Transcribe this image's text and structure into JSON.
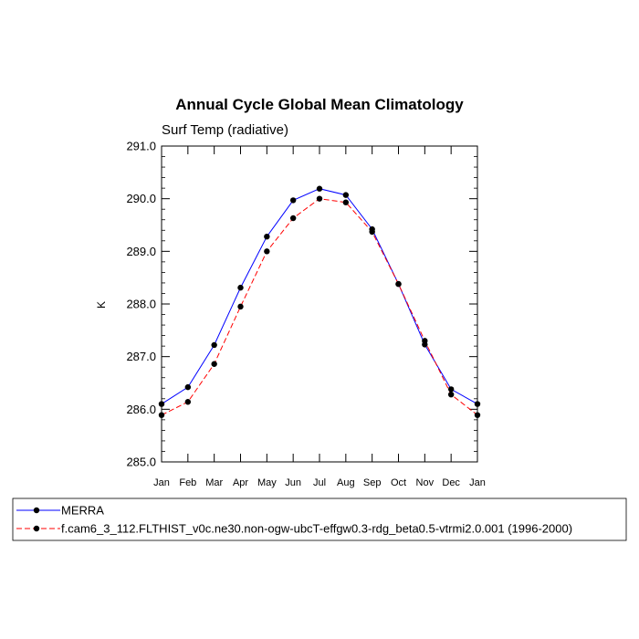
{
  "chart_data": {
    "type": "line",
    "title": "Annual Cycle Global Mean Climatology",
    "subtitle": "Surf Temp (radiative)",
    "ylabel": "K",
    "xlabel": "",
    "ylim": [
      285.0,
      291.0
    ],
    "yticks": [
      "285.0",
      "286.0",
      "287.0",
      "288.0",
      "289.0",
      "290.0",
      "291.0"
    ],
    "categories": [
      "Jan",
      "Feb",
      "Mar",
      "Apr",
      "May",
      "Jun",
      "Jul",
      "Aug",
      "Sep",
      "Oct",
      "Nov",
      "Dec",
      "Jan"
    ],
    "series": [
      {
        "name": "MERRA",
        "color": "#0000ff",
        "dash": "solid",
        "values": [
          286.1,
          286.42,
          287.22,
          288.31,
          289.28,
          289.97,
          290.19,
          290.07,
          289.42,
          288.38,
          287.23,
          286.38,
          286.1
        ]
      },
      {
        "name": "f.cam6_3_112.FLTHIST_v0c.ne30.non-ogw-ubcT-effgw0.3-rdg_beta0.5-vtrmi2.0.001 (1996-2000)",
        "color": "#ff0000",
        "dash": "dashed",
        "values": [
          285.89,
          286.14,
          286.86,
          287.95,
          289.0,
          289.63,
          290.0,
          289.93,
          289.37,
          288.38,
          287.3,
          286.28,
          285.89
        ]
      }
    ],
    "grid": false,
    "legend": "bottom"
  }
}
